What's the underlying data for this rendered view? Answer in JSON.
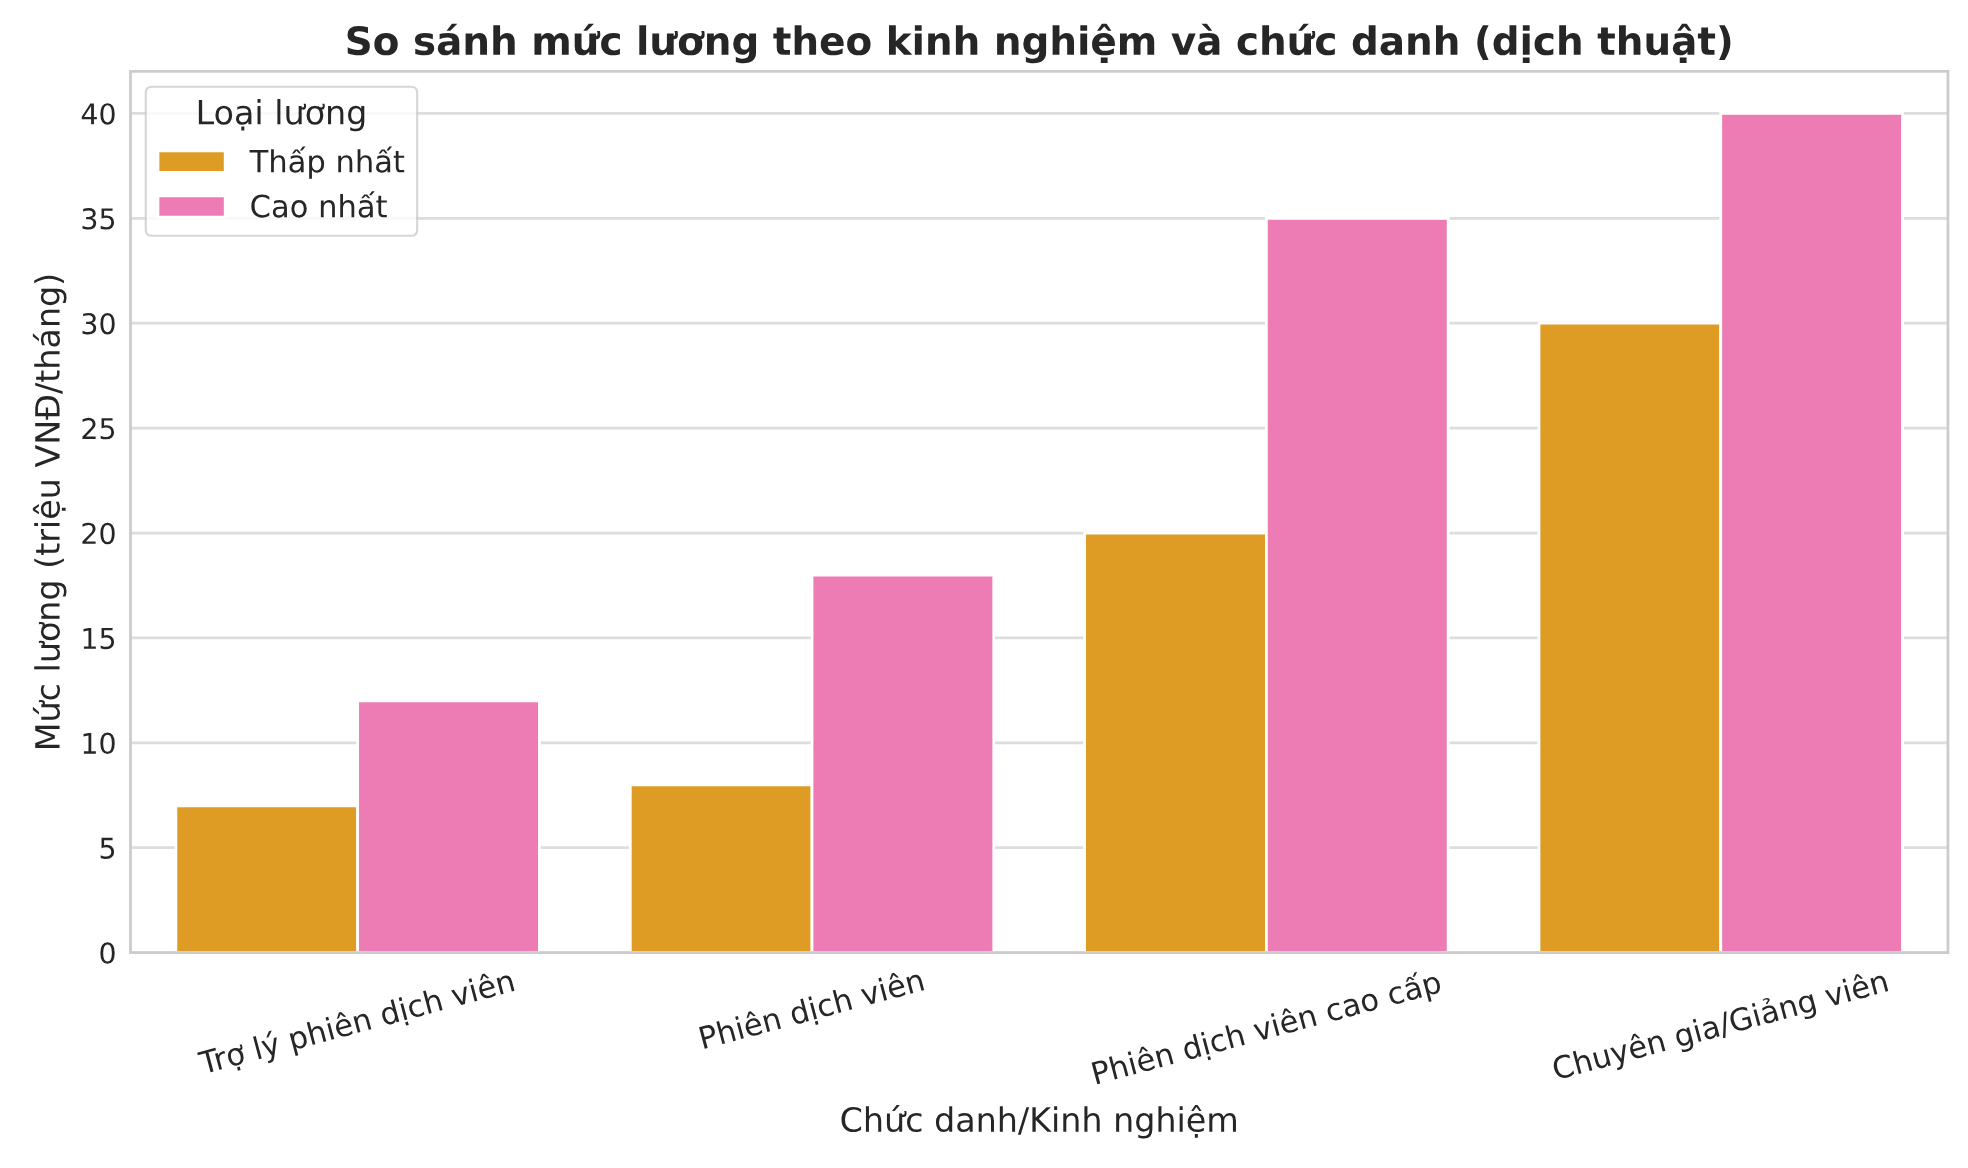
{
  "chart_data": {
    "type": "bar",
    "title": "So sánh mức lương theo kinh nghiệm và chức danh (dịch thuật)",
    "xlabel": "Chức danh/Kinh nghiệm",
    "ylabel": "Mức lương (triệu VNĐ/tháng)",
    "legend_title": "Loại lương",
    "categories": [
      "Trợ lý phiên dịch viên",
      "Phiên dịch viên",
      "Phiên dịch viên cao cấp",
      "Chuyên gia/Giảng viên"
    ],
    "series": [
      {
        "name": "Thấp nhất",
        "color": "#df9c24",
        "values": [
          7,
          8,
          20,
          30
        ]
      },
      {
        "name": "Cao nhất",
        "color": "#ed7cb4",
        "values": [
          12,
          18,
          35,
          40
        ]
      }
    ],
    "ylim": [
      0,
      42
    ],
    "yticks": [
      0,
      5,
      10,
      15,
      20,
      25,
      30,
      35,
      40
    ],
    "grid": "y",
    "legend": "top left"
  }
}
